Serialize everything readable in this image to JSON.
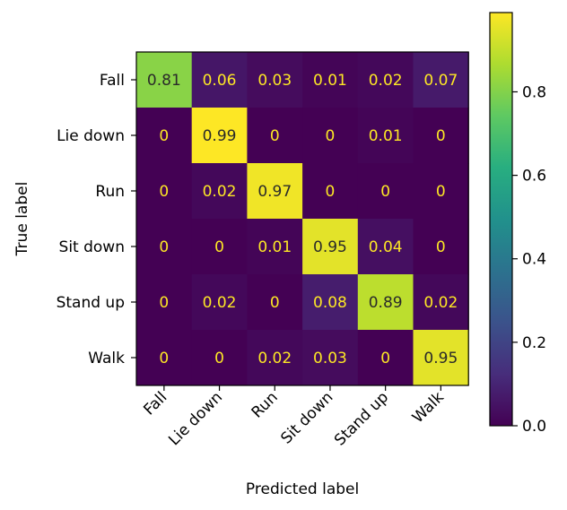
{
  "chart_data": {
    "type": "heatmap",
    "xlabel": "Predicted label",
    "ylabel": "True label",
    "x_categories": [
      "Fall",
      "Lie down",
      "Run",
      "Sit down",
      "Stand up",
      "Walk"
    ],
    "y_categories": [
      "Fall",
      "Lie down",
      "Run",
      "Sit down",
      "Stand up",
      "Walk"
    ],
    "values": [
      [
        0.81,
        0.06,
        0.03,
        0.01,
        0.02,
        0.07
      ],
      [
        0,
        0.99,
        0,
        0,
        0.01,
        0
      ],
      [
        0,
        0.02,
        0.97,
        0,
        0,
        0
      ],
      [
        0,
        0,
        0.01,
        0.95,
        0.04,
        0
      ],
      [
        0,
        0.02,
        0,
        0.08,
        0.89,
        0.02
      ],
      [
        0,
        0,
        0.02,
        0.03,
        0,
        0.95
      ]
    ],
    "value_labels": [
      [
        "0.81",
        "0.06",
        "0.03",
        "0.01",
        "0.02",
        "0.07"
      ],
      [
        "0",
        "0.99",
        "0",
        "0",
        "0.01",
        "0"
      ],
      [
        "0",
        "0.02",
        "0.97",
        "0",
        "0",
        "0"
      ],
      [
        "0",
        "0",
        "0.01",
        "0.95",
        "0.04",
        "0"
      ],
      [
        "0",
        "0.02",
        "0",
        "0.08",
        "0.89",
        "0.02"
      ],
      [
        "0",
        "0",
        "0.02",
        "0.03",
        "0",
        "0.95"
      ]
    ],
    "colormap": "viridis",
    "color_range": [
      0,
      0.99
    ],
    "colorbar_ticks": [
      0.0,
      0.2,
      0.4,
      0.6,
      0.8
    ],
    "colorbar_tick_labels": [
      "0.0",
      "0.2",
      "0.4",
      "0.6",
      "0.8"
    ],
    "text_color_light": "#fde725",
    "text_color_dark": "#2a2a2a"
  }
}
